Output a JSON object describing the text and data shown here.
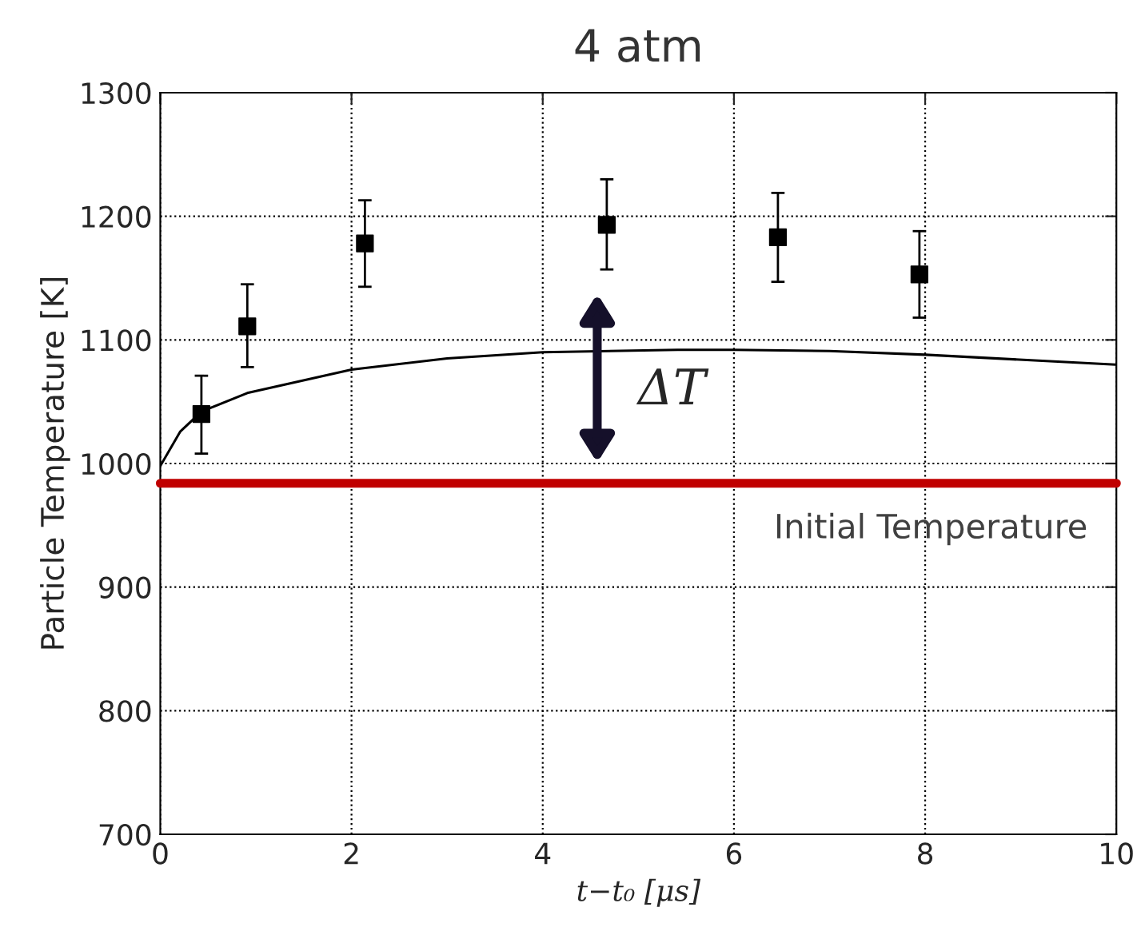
{
  "chart_data": {
    "type": "scatter",
    "title": "4 atm",
    "xlabel": "t−t₀ [μs]",
    "ylabel": "Particle Temperature [K]",
    "xlim": [
      0,
      10
    ],
    "xticks": [
      0,
      2,
      4,
      6,
      8,
      10
    ],
    "ylim": [
      700,
      1300
    ],
    "yticks": [
      700,
      800,
      900,
      1000,
      1100,
      1200,
      1300
    ],
    "grid": true,
    "series": [
      {
        "color": "#000000",
        "marker": "square",
        "x": [
          0.43,
          0.91,
          2.14,
          4.67,
          6.46,
          7.94
        ],
        "values": [
          1040,
          1111,
          1178,
          1193,
          1183,
          1153
        ],
        "errors": [
          [
            1008,
            1071
          ],
          [
            1078,
            1145
          ],
          [
            1143,
            1213
          ],
          [
            1157,
            1230
          ],
          [
            1147,
            1219
          ],
          [
            1118,
            1188
          ]
        ]
      },
      {
        "type": "line",
        "color": "#000000",
        "marker": "none",
        "line_style": "solid",
        "x": [
          0,
          0.21,
          0.43,
          0.91,
          2.0,
          3.0,
          4.0,
          5.41,
          6.0,
          7.0,
          8.0,
          9.99
        ],
        "values": [
          998,
          1026,
          1042,
          1057,
          1076,
          1085,
          1090,
          1092,
          1092,
          1091,
          1088,
          1080
        ]
      }
    ],
    "ref_lines": [
      {
        "axis": "y",
        "value": 984,
        "label": "Initial Temperature",
        "color": "#c00000",
        "line_style": "solid"
      }
    ],
    "annotations": [
      "ΔT"
    ]
  }
}
